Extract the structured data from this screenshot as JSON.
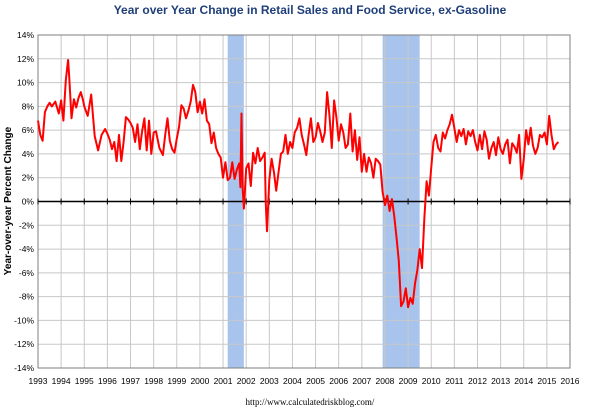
{
  "chart_data": {
    "type": "line",
    "title": "Year over Year Change in Retail Sales and Food Service, ex-Gasoline",
    "ylabel": "Year-over-year Percent Change",
    "xlabel": "",
    "source": "http://www.calculatedriskblog.com/",
    "xlim": [
      1993,
      2016
    ],
    "ylim": [
      -14,
      14
    ],
    "yticks": [
      "-14%",
      "-12%",
      "-10%",
      "-8%",
      "-6%",
      "-4%",
      "-2%",
      "0%",
      "2%",
      "4%",
      "6%",
      "8%",
      "10%",
      "12%",
      "14%"
    ],
    "xticks": [
      "1993",
      "1994",
      "1995",
      "1996",
      "1997",
      "1998",
      "1999",
      "2000",
      "2001",
      "2002",
      "2003",
      "2004",
      "2005",
      "2006",
      "2007",
      "2008",
      "2009",
      "2010",
      "2011",
      "2012",
      "2013",
      "2014",
      "2015",
      "2016"
    ],
    "grid": true,
    "legend": "none",
    "recessions": [
      [
        2001.2,
        2001.9
      ],
      [
        2007.9,
        2009.5
      ]
    ],
    "colors": {
      "line": "#ff0000",
      "recession": "#a9c4ec",
      "zero_line": "#000000"
    },
    "series": [
      {
        "x": [
          1993.0,
          1993.1,
          1993.2,
          1993.3,
          1993.4,
          1993.5,
          1993.6,
          1993.75,
          1993.9,
          1994.0,
          1994.1,
          1994.2,
          1994.3,
          1994.35,
          1994.45,
          1994.55,
          1994.65,
          1994.75,
          1994.85,
          1994.95,
          1995.0,
          1995.15,
          1995.3,
          1995.45,
          1995.6,
          1995.75,
          1995.9,
          1996.0,
          1996.1,
          1996.2,
          1996.3,
          1996.4,
          1996.5,
          1996.6,
          1996.7,
          1996.8,
          1996.9,
          1997.0,
          1997.1,
          1997.2,
          1997.3,
          1997.4,
          1997.5,
          1997.6,
          1997.7,
          1997.8,
          1997.9,
          1998.0,
          1998.1,
          1998.25,
          1998.4,
          1998.5,
          1998.6,
          1998.7,
          1998.8,
          1998.9,
          1999.0,
          1999.1,
          1999.2,
          1999.3,
          1999.4,
          1999.5,
          1999.6,
          1999.7,
          1999.8,
          1999.9,
          2000.0,
          2000.1,
          2000.2,
          2000.3,
          2000.4,
          2000.5,
          2000.6,
          2000.7,
          2000.8,
          2000.9,
          2001.0,
          2001.1,
          2001.2,
          2001.3,
          2001.4,
          2001.5,
          2001.6,
          2001.7,
          2001.75,
          2001.8,
          2001.85,
          2001.9,
          2002.0,
          2002.1,
          2002.2,
          2002.3,
          2002.4,
          2002.5,
          2002.6,
          2002.7,
          2002.8,
          2002.85,
          2002.9,
          2003.0,
          2003.1,
          2003.2,
          2003.3,
          2003.4,
          2003.5,
          2003.6,
          2003.7,
          2003.8,
          2003.9,
          2004.0,
          2004.1,
          2004.2,
          2004.3,
          2004.4,
          2004.5,
          2004.6,
          2004.7,
          2004.8,
          2004.9,
          2005.0,
          2005.1,
          2005.2,
          2005.3,
          2005.4,
          2005.5,
          2005.6,
          2005.7,
          2005.8,
          2005.9,
          2006.0,
          2006.1,
          2006.2,
          2006.3,
          2006.4,
          2006.5,
          2006.6,
          2006.7,
          2006.8,
          2006.9,
          2007.0,
          2007.1,
          2007.2,
          2007.3,
          2007.4,
          2007.5,
          2007.6,
          2007.7,
          2007.8,
          2007.9,
          2008.0,
          2008.1,
          2008.2,
          2008.3,
          2008.4,
          2008.5,
          2008.6,
          2008.7,
          2008.8,
          2008.9,
          2009.0,
          2009.1,
          2009.2,
          2009.3,
          2009.4,
          2009.5,
          2009.6,
          2009.7,
          2009.8,
          2009.9,
          2010.0,
          2010.1,
          2010.2,
          2010.3,
          2010.4,
          2010.5,
          2010.6,
          2010.7,
          2010.8,
          2010.9,
          2011.0,
          2011.1,
          2011.2,
          2011.3,
          2011.4,
          2011.5,
          2011.6,
          2011.7,
          2011.8,
          2011.9,
          2012.0,
          2012.1,
          2012.2,
          2012.3,
          2012.4,
          2012.5,
          2012.6,
          2012.7,
          2012.8,
          2012.9,
          2013.0,
          2013.1,
          2013.2,
          2013.3,
          2013.4,
          2013.5,
          2013.6,
          2013.7,
          2013.8,
          2013.9,
          2014.0,
          2014.1,
          2014.2,
          2014.3,
          2014.4,
          2014.5,
          2014.6,
          2014.7,
          2014.8,
          2014.9,
          2015.0,
          2015.1,
          2015.2,
          2015.3,
          2015.4,
          2015.5
        ],
        "values": [
          6.8,
          5.6,
          5.1,
          7.5,
          8.0,
          8.3,
          8.0,
          8.4,
          7.4,
          8.5,
          6.8,
          10.2,
          11.9,
          10.5,
          7.0,
          8.6,
          7.9,
          8.7,
          9.2,
          8.5,
          8.0,
          7.2,
          9.0,
          5.5,
          4.3,
          5.6,
          6.1,
          5.7,
          5.2,
          4.4,
          5.0,
          3.4,
          5.6,
          3.4,
          5.0,
          7.1,
          6.9,
          6.6,
          6.2,
          5.0,
          6.5,
          4.4,
          5.9,
          7.0,
          4.3,
          6.8,
          4.0,
          5.8,
          5.9,
          4.5,
          3.9,
          5.6,
          7.0,
          5.1,
          4.4,
          4.1,
          5.3,
          6.3,
          8.1,
          7.8,
          7.0,
          7.6,
          8.4,
          9.8,
          9.2,
          7.5,
          8.4,
          7.4,
          8.6,
          6.8,
          6.5,
          4.9,
          5.8,
          4.5,
          4.0,
          3.7,
          2.0,
          3.3,
          1.8,
          2.0,
          3.3,
          1.9,
          2.7,
          3.2,
          1.2,
          7.4,
          1.0,
          -0.6,
          2.8,
          3.2,
          1.3,
          4.1,
          3.2,
          4.5,
          3.4,
          3.7,
          4.1,
          -0.2,
          -2.5,
          1.8,
          3.6,
          2.5,
          0.9,
          2.5,
          4.0,
          4.2,
          5.6,
          4.0,
          5.0,
          4.5,
          5.8,
          6.2,
          7.0,
          5.6,
          4.8,
          3.9,
          5.6,
          7.0,
          5.0,
          5.4,
          6.6,
          5.9,
          5.0,
          5.8,
          9.2,
          7.3,
          4.5,
          8.5,
          7.1,
          5.1,
          6.5,
          5.8,
          4.5,
          4.8,
          7.4,
          4.2,
          6.0,
          3.5,
          5.4,
          2.5,
          4.0,
          2.5,
          3.7,
          3.2,
          2.0,
          3.6,
          3.4,
          3.1,
          0.8,
          -0.3,
          0.5,
          -0.8,
          0.2,
          -1.2,
          -3.0,
          -5.0,
          -8.8,
          -8.4,
          -7.3,
          -8.9,
          -8.1,
          -8.6,
          -6.9,
          -5.8,
          -4.0,
          -5.6,
          -1.5,
          1.7,
          0.5,
          2.8,
          5.0,
          5.6,
          4.5,
          4.2,
          5.8,
          5.3,
          6.0,
          6.5,
          7.3,
          6.2,
          5.0,
          6.0,
          5.5,
          6.1,
          4.8,
          5.9,
          5.5,
          6.0,
          5.0,
          4.3,
          5.6,
          4.4,
          5.9,
          5.2,
          3.6,
          4.5,
          5.0,
          3.9,
          5.4,
          4.4,
          4.0,
          4.8,
          5.2,
          3.2,
          4.9,
          4.6,
          4.1,
          5.6,
          1.9,
          3.5,
          6.0,
          4.8,
          6.2,
          4.7,
          4.0,
          4.5,
          5.6,
          5.4,
          5.8,
          4.8,
          7.2,
          5.6,
          4.4,
          4.8,
          5.0
        ]
      }
    ]
  }
}
